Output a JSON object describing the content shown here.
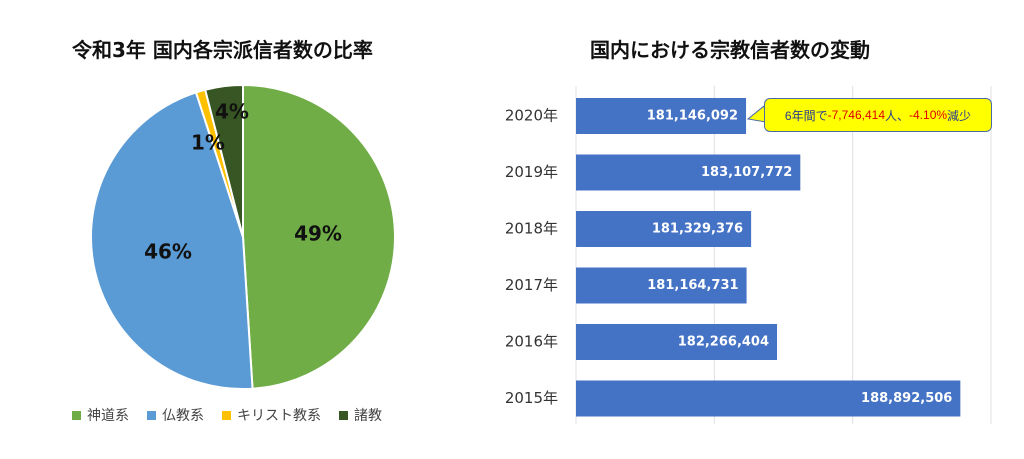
{
  "chart_data": [
    {
      "type": "pie",
      "title": "令和3年 国内各宗派信者数の比率",
      "labels": [
        "神道系",
        "仏教系",
        "キリスト教系",
        "諸教"
      ],
      "values": [
        49,
        46,
        1,
        4
      ],
      "data_labels": [
        "49%",
        "46%",
        "1%",
        "4%"
      ],
      "colors": [
        "#70ad47",
        "#5b9bd5",
        "#ffc000",
        "#375623"
      ],
      "legend": "bottom"
    },
    {
      "type": "bar",
      "orientation": "horizontal",
      "title": "国内における宗教信者数の変動",
      "categories": [
        "2020年",
        "2019年",
        "2018年",
        "2017年",
        "2016年",
        "2015年"
      ],
      "values": [
        181146092,
        183107772,
        181329376,
        181164731,
        182266404,
        188892506
      ],
      "data_labels": [
        "181,146,092",
        "183,107,772",
        "181,329,376",
        "181,164,731",
        "182,266,404",
        "188,892,506"
      ],
      "xlim": [
        175000000,
        190000000
      ],
      "grid": true,
      "color": "#4472c4",
      "annotation": {
        "prefix": "6年間で",
        "amount": "-7,746,414",
        "mid": "人、",
        "pct": "-4.10%",
        "suffix": "減少"
      }
    }
  ]
}
